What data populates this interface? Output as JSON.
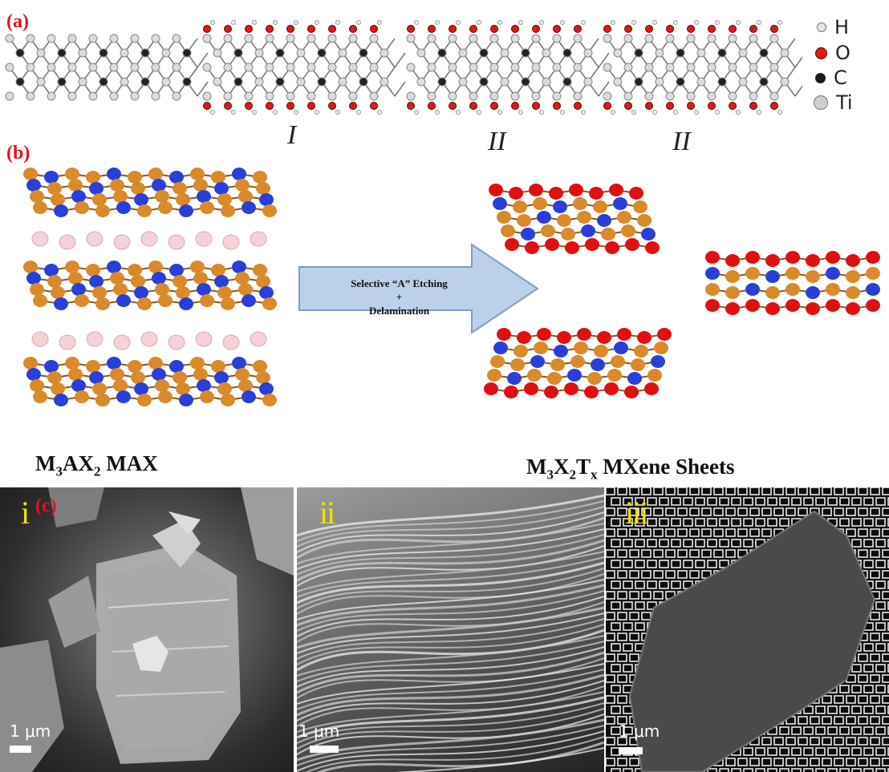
{
  "panels": {
    "a_label": "(a)",
    "b_label": "(b)",
    "c_label": "(c)"
  },
  "legend": {
    "items": [
      {
        "symbol": "H",
        "color": "#d4d4d4"
      },
      {
        "symbol": "O",
        "color": "#d81c1c"
      },
      {
        "symbol": "C",
        "color": "#1a1a1a"
      },
      {
        "symbol": "Ti",
        "color": "#bdbdbd"
      }
    ]
  },
  "structure_labels": [
    "I",
    "II",
    "II"
  ],
  "process": {
    "arrow_line1": "Selective “A” Etching",
    "arrow_line2": "+",
    "arrow_line3": "Delamination",
    "max_caption_main": "M",
    "max_caption_sub1": "3",
    "max_caption_mid": "AX",
    "max_caption_sub2": "2",
    "max_caption_end": " MAX",
    "mxene_caption_m": "M",
    "mxene_caption_sub1": "3",
    "mxene_caption_x": "X",
    "mxene_caption_sub2": "2",
    "mxene_caption_t": "T",
    "mxene_caption_sub3": "x",
    "mxene_caption_end": " MXene Sheets"
  },
  "sem": {
    "panel1_num": "i",
    "panel2_num": "ii",
    "panel3_num": "iii",
    "scale1": "1 μm",
    "scale2": "1 μm",
    "scale3": "1 μm"
  },
  "colors": {
    "label_red": "#e0141e",
    "ti_orange": "#d98a2b",
    "c_blue": "#2a3fd8",
    "a_pink": "#f4d2d8",
    "o_red": "#e01010",
    "arrow_fill": "#bcd0ea"
  }
}
